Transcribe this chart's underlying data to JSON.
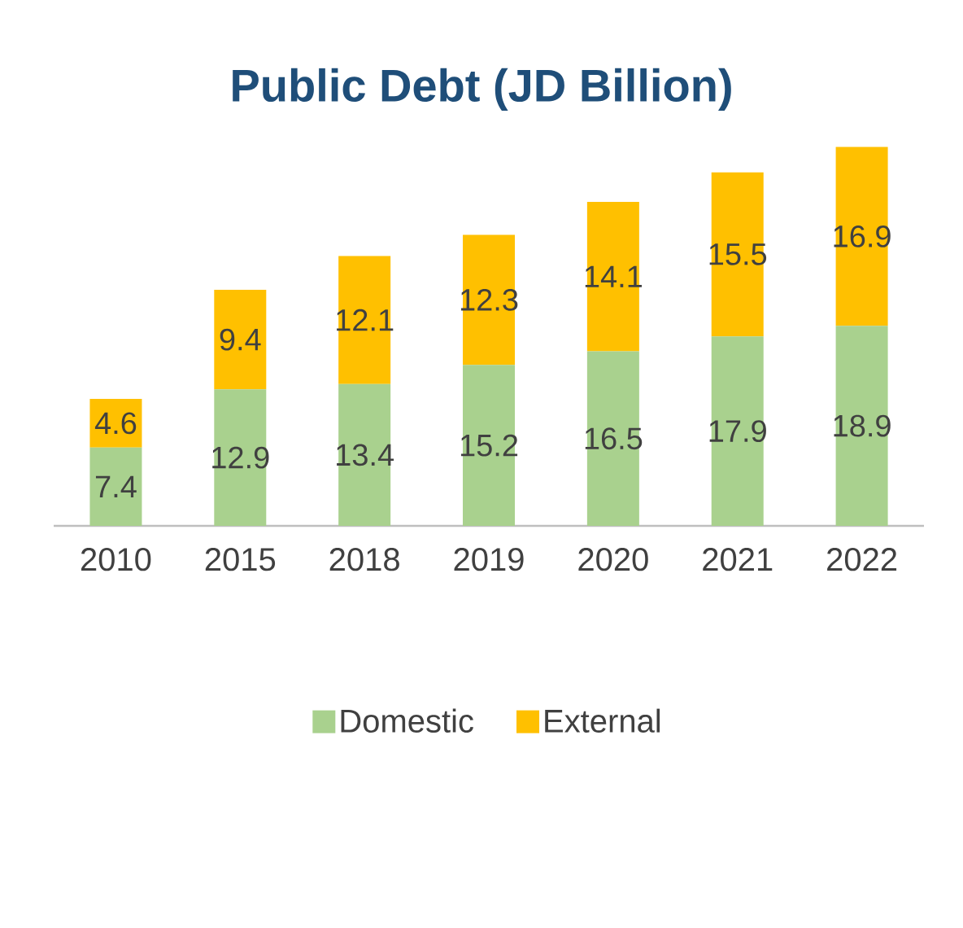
{
  "chart_data": {
    "type": "bar",
    "title": "Public Debt (JD Billion)",
    "stacked": true,
    "data_labels": true,
    "legend": "bottom",
    "categories": [
      "2010",
      "2015",
      "2018",
      "2019",
      "2020",
      "2021",
      "2022"
    ],
    "series": [
      {
        "name": "Domestic",
        "color": "#a9d18e",
        "values": [
          7.4,
          12.9,
          13.4,
          15.2,
          16.5,
          17.9,
          18.9
        ]
      },
      {
        "name": "External",
        "color": "#ffc000",
        "values": [
          4.6,
          9.4,
          12.1,
          12.3,
          14.1,
          15.5,
          16.9
        ]
      }
    ]
  }
}
